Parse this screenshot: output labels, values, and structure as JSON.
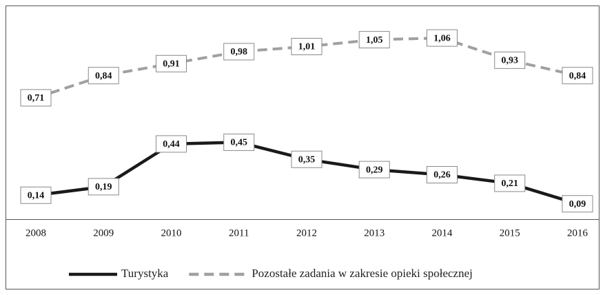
{
  "chart_data": {
    "type": "line",
    "categories": [
      "2008",
      "2009",
      "2010",
      "2011",
      "2012",
      "2013",
      "2014",
      "2015",
      "2016"
    ],
    "series": [
      {
        "name": "Turystyka",
        "color": "#1a1a1a",
        "dash": false,
        "values": [
          0.14,
          0.19,
          0.44,
          0.45,
          0.35,
          0.29,
          0.26,
          0.21,
          0.09
        ],
        "value_labels": [
          "0,14",
          "0,19",
          "0,44",
          "0,45",
          "0,35",
          "0,29",
          "0,26",
          "0,21",
          "0,09"
        ]
      },
      {
        "name": "Pozostałe zadania w zakresie opieki społecznej",
        "color": "#a0a0a0",
        "dash": true,
        "values": [
          0.71,
          0.84,
          0.91,
          0.98,
          1.01,
          1.05,
          1.06,
          0.93,
          0.84
        ],
        "value_labels": [
          "0,71",
          "0,84",
          "0,91",
          "0,98",
          "1,01",
          "1,05",
          "1,06",
          "0,93",
          "0,84"
        ]
      }
    ],
    "ylim": [
      0,
      1.25
    ],
    "legend": "bottom"
  }
}
